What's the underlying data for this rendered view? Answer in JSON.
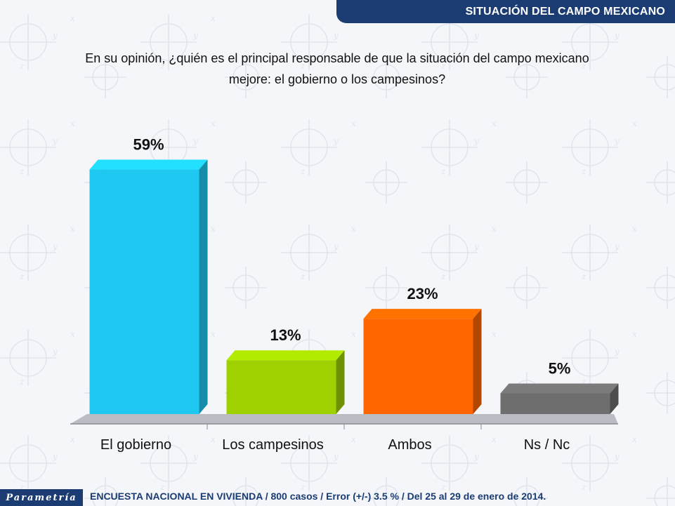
{
  "header": {
    "title": "SITUACIÓN DEL CAMPO MEXICANO"
  },
  "question": {
    "line1": "En su opinión, ¿quién es el principal responsable de que la situación del campo mexicano",
    "line2": "mejore: el gobierno o los campesinos?"
  },
  "chart_data": {
    "type": "bar",
    "categories": [
      "El gobierno",
      "Los campesinos",
      "Ambos",
      "Ns / Nc"
    ],
    "values": [
      59,
      13,
      23,
      5
    ],
    "value_labels": [
      "59%",
      "13%",
      "23%",
      "5%"
    ],
    "colors": [
      "#1ec8f0",
      "#9fd100",
      "#ff6600",
      "#6e6e6e"
    ],
    "ylim": [
      0,
      60
    ],
    "title": "",
    "xlabel": "",
    "ylabel": "",
    "grid": false,
    "legend": "none"
  },
  "footer": {
    "logo_text": "Parametría",
    "note": "ENCUESTA NACIONAL EN VIVIENDA / 800 casos / Error (+/-) 3.5 % / Del 25 al 29 de enero de 2014."
  },
  "colors": {
    "banner": "#1b3c73",
    "floor": "#b9bcc2"
  }
}
